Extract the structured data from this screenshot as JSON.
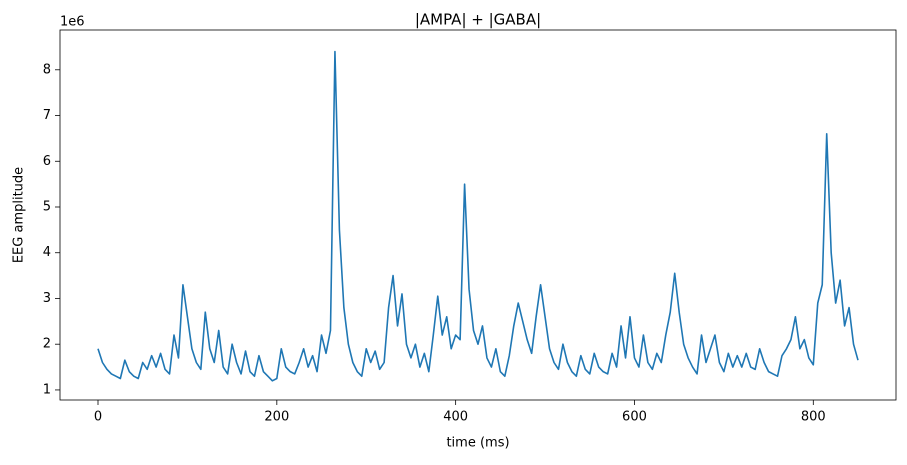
{
  "chart_data": {
    "type": "line",
    "title": "|AMPA| + |GABA|",
    "xlabel": "time (ms)",
    "ylabel": "EEG amplitude",
    "y_offset_label": "1e6",
    "xlim": [
      -42.5,
      892.5
    ],
    "ylim": [
      0.78,
      8.87
    ],
    "xticks": [
      0,
      200,
      400,
      600,
      800
    ],
    "yticks": [
      1,
      2,
      3,
      4,
      5,
      6,
      7,
      8
    ],
    "grid": false,
    "x": [
      0,
      5,
      10,
      15,
      20,
      25,
      30,
      35,
      40,
      45,
      50,
      55,
      60,
      65,
      70,
      75,
      80,
      85,
      90,
      95,
      100,
      105,
      110,
      115,
      120,
      125,
      130,
      135,
      140,
      145,
      150,
      155,
      160,
      165,
      170,
      175,
      180,
      185,
      190,
      195,
      200,
      205,
      210,
      215,
      220,
      225,
      230,
      235,
      240,
      245,
      250,
      255,
      260,
      265,
      270,
      275,
      280,
      285,
      290,
      295,
      300,
      305,
      310,
      315,
      320,
      325,
      330,
      335,
      340,
      345,
      350,
      355,
      360,
      365,
      370,
      375,
      380,
      385,
      390,
      395,
      400,
      405,
      410,
      415,
      420,
      425,
      430,
      435,
      440,
      445,
      450,
      455,
      460,
      465,
      470,
      475,
      480,
      485,
      490,
      495,
      500,
      505,
      510,
      515,
      520,
      525,
      530,
      535,
      540,
      545,
      550,
      555,
      560,
      565,
      570,
      575,
      580,
      585,
      590,
      595,
      600,
      605,
      610,
      615,
      620,
      625,
      630,
      635,
      640,
      645,
      650,
      655,
      660,
      665,
      670,
      675,
      680,
      685,
      690,
      695,
      700,
      705,
      710,
      715,
      720,
      725,
      730,
      735,
      740,
      745,
      750,
      755,
      760,
      765,
      770,
      775,
      780,
      785,
      790,
      795,
      800,
      805,
      810,
      815,
      820,
      825,
      830,
      835,
      840,
      845,
      850
    ],
    "series": [
      {
        "name": "|AMPA| + |GABA|",
        "color": "#1f77b4",
        "values": [
          1.9,
          1.6,
          1.45,
          1.35,
          1.3,
          1.25,
          1.65,
          1.4,
          1.3,
          1.25,
          1.6,
          1.45,
          1.75,
          1.5,
          1.8,
          1.45,
          1.35,
          2.2,
          1.7,
          3.3,
          2.6,
          1.9,
          1.6,
          1.45,
          2.7,
          1.9,
          1.6,
          2.3,
          1.5,
          1.35,
          2.0,
          1.6,
          1.35,
          1.85,
          1.4,
          1.3,
          1.75,
          1.4,
          1.3,
          1.2,
          1.25,
          1.9,
          1.5,
          1.4,
          1.35,
          1.6,
          1.9,
          1.5,
          1.75,
          1.4,
          2.2,
          1.8,
          2.3,
          8.4,
          4.5,
          2.8,
          2.0,
          1.6,
          1.4,
          1.3,
          1.9,
          1.6,
          1.85,
          1.45,
          1.6,
          2.8,
          3.5,
          2.4,
          3.1,
          2.0,
          1.7,
          2.0,
          1.5,
          1.8,
          1.4,
          2.2,
          3.05,
          2.2,
          2.6,
          1.9,
          2.2,
          2.1,
          5.5,
          3.2,
          2.3,
          2.0,
          2.4,
          1.7,
          1.5,
          1.9,
          1.4,
          1.3,
          1.75,
          2.4,
          2.9,
          2.5,
          2.1,
          1.8,
          2.6,
          3.3,
          2.6,
          1.9,
          1.6,
          1.45,
          2.0,
          1.6,
          1.4,
          1.3,
          1.75,
          1.45,
          1.35,
          1.8,
          1.5,
          1.4,
          1.35,
          1.8,
          1.5,
          2.4,
          1.7,
          2.6,
          1.7,
          1.5,
          2.2,
          1.6,
          1.45,
          1.8,
          1.6,
          2.2,
          2.7,
          3.55,
          2.7,
          2.0,
          1.7,
          1.5,
          1.35,
          2.2,
          1.6,
          1.9,
          2.2,
          1.6,
          1.4,
          1.8,
          1.5,
          1.75,
          1.5,
          1.8,
          1.5,
          1.45,
          1.9,
          1.6,
          1.4,
          1.35,
          1.3,
          1.75,
          1.9,
          2.1,
          2.6,
          1.9,
          2.1,
          1.7,
          1.55,
          2.9,
          3.3,
          6.6,
          4.0,
          2.9,
          3.4,
          2.4,
          2.8,
          2.0,
          1.65
        ]
      }
    ]
  }
}
